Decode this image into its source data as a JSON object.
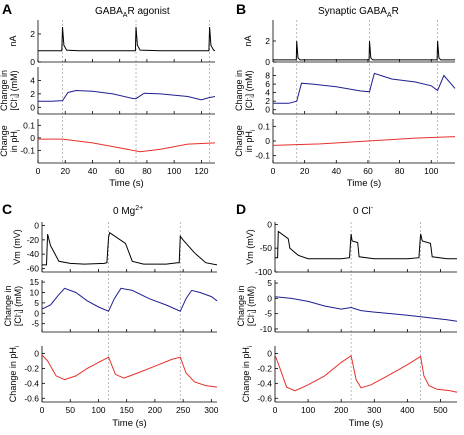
{
  "figure": {
    "panels": [
      {
        "letter": "A",
        "title_main": "GABA",
        "title_sub": "A",
        "title_rest": "R agonist",
        "title_sup": ""
      },
      {
        "letter": "B",
        "title_main": "Synaptic GABA",
        "title_sub": "A",
        "title_rest": "R",
        "title_sup": ""
      },
      {
        "letter": "C",
        "title_main": "0 Mg",
        "title_sub": "",
        "title_rest": "",
        "title_sup": "2+"
      },
      {
        "letter": "D",
        "title_main": "0 Cl",
        "title_sub": "",
        "title_rest": "",
        "title_sup": "-"
      }
    ],
    "axis_labels": {
      "nA": "nA",
      "vm": "Vm (mV)",
      "cl_line1": "Change in",
      "cl_line2_pre": "[Cl",
      "cl_line2_sup": "-",
      "cl_line2_sub": "i",
      "cl_line2_post": "] (mM)",
      "ph_line1": "Change",
      "ph_line2_pre": "in pH",
      "ph_line2_sub": "i",
      "ph_single_pre": "Change in pH",
      "ph_single_sub": "i",
      "time": "Time (s)"
    },
    "colors": {
      "current": "#000000",
      "chloride": "#1f1f8f",
      "ph": "#e8302a",
      "event_lines": "#aaaaaa"
    }
  },
  "chart_data": [
    {
      "panel": "A",
      "trace": "current",
      "type": "line",
      "ylabel": "nA",
      "xlim": [
        0,
        130
      ],
      "ylim": [
        0,
        3
      ],
      "yticks": [
        0,
        2
      ],
      "events": [
        18,
        72,
        126
      ],
      "x": [
        0,
        17.5,
        18,
        19,
        21,
        30,
        71.5,
        72,
        73,
        75,
        90,
        125.5,
        126,
        127,
        129,
        130
      ],
      "y": [
        0.8,
        0.8,
        2.5,
        1.2,
        0.85,
        0.8,
        0.8,
        2.5,
        1.2,
        0.85,
        0.8,
        0.8,
        2.5,
        1.2,
        0.85,
        0.8
      ]
    },
    {
      "panel": "A",
      "trace": "chloride",
      "type": "line",
      "ylabel": "Change in [Cl-]i (mM)",
      "xlim": [
        0,
        130
      ],
      "ylim": [
        -1,
        6
      ],
      "yticks": [
        0,
        2,
        4
      ],
      "x": [
        0,
        10,
        18,
        22,
        28,
        40,
        55,
        70,
        72,
        78,
        90,
        110,
        120,
        125,
        130
      ],
      "y": [
        0.9,
        0.9,
        1.0,
        2.2,
        2.5,
        2.4,
        2.0,
        1.3,
        1.3,
        2.1,
        2.0,
        1.6,
        1.1,
        1.4,
        1.6
      ]
    },
    {
      "panel": "A",
      "trace": "ph",
      "type": "line",
      "ylabel": "Change in pHi",
      "xlim": [
        0,
        130
      ],
      "ylim": [
        -0.2,
        0.15
      ],
      "yticks": [
        -0.1,
        0,
        0.1
      ],
      "x": [
        0,
        18,
        40,
        60,
        75,
        90,
        110,
        130
      ],
      "y": [
        -0.01,
        -0.01,
        -0.04,
        -0.08,
        -0.11,
        -0.09,
        -0.05,
        -0.04
      ]
    },
    {
      "panel": "B",
      "trace": "current",
      "type": "line",
      "ylabel": "nA",
      "xlim": [
        0,
        115
      ],
      "ylim": [
        0,
        4
      ],
      "yticks": [
        0,
        2
      ],
      "events": [
        15,
        61,
        104
      ],
      "x": [
        0,
        14.7,
        15,
        15.8,
        17,
        60.7,
        61,
        61.8,
        63,
        103.7,
        104,
        104.8,
        106,
        115
      ],
      "y": [
        0.2,
        0.2,
        2.0,
        0.4,
        0.2,
        0.2,
        2.0,
        0.4,
        0.2,
        0.2,
        2.0,
        0.4,
        0.2,
        0.2
      ]
    },
    {
      "panel": "B",
      "trace": "chloride",
      "type": "line",
      "ylabel": "Change in [Cl-]i (mM)",
      "xlim": [
        0,
        115
      ],
      "ylim": [
        -1,
        10
      ],
      "yticks": [
        0,
        2,
        4,
        6,
        8
      ],
      "x": [
        0,
        10,
        15,
        18,
        25,
        40,
        55,
        61,
        64,
        75,
        90,
        100,
        104,
        108,
        115
      ],
      "y": [
        1.5,
        1.5,
        2.0,
        6.2,
        6.0,
        5.4,
        4.4,
        4.2,
        8.5,
        7.2,
        6.5,
        5.6,
        4.5,
        8.0,
        5.0
      ]
    },
    {
      "panel": "B",
      "trace": "ph",
      "type": "line",
      "ylabel": "Change in pHi",
      "xlim": [
        0,
        115
      ],
      "ylim": [
        -0.15,
        0.15
      ],
      "yticks": [
        -0.1,
        0,
        0.1
      ],
      "x": [
        0,
        30,
        60,
        90,
        115
      ],
      "y": [
        -0.03,
        -0.02,
        0.0,
        0.02,
        0.03
      ]
    },
    {
      "panel": "C",
      "trace": "vm",
      "type": "line",
      "ylabel": "Vm (mV)",
      "xlim": [
        0,
        310
      ],
      "ylim": [
        -65,
        5
      ],
      "yticks": [
        -60,
        -40,
        -20,
        0
      ],
      "events": [
        118,
        245
      ],
      "x": [
        0,
        8,
        10,
        15,
        30,
        50,
        75,
        110,
        115,
        118,
        120,
        148,
        160,
        180,
        200,
        220,
        240,
        243,
        245,
        250,
        270,
        290,
        310
      ],
      "y": [
        -55,
        -55,
        -12,
        -28,
        -50,
        -53,
        -54,
        -53,
        -52,
        -16,
        -10,
        -25,
        -50,
        -54,
        -54,
        -54,
        -52,
        -52,
        -15,
        -20,
        -38,
        -52,
        -55
      ]
    },
    {
      "panel": "C",
      "trace": "chloride",
      "type": "line",
      "ylabel": "Change in [Cl-]i (mM)",
      "xlim": [
        0,
        310
      ],
      "ylim": [
        -9,
        16
      ],
      "yticks": [
        -5,
        0,
        5,
        10,
        15
      ],
      "x": [
        0,
        15,
        30,
        40,
        60,
        80,
        100,
        118,
        128,
        140,
        160,
        190,
        220,
        245,
        255,
        265,
        280,
        300,
        310
      ],
      "y": [
        2,
        4,
        9,
        12,
        10,
        6,
        3,
        1,
        7,
        12,
        11,
        7,
        4,
        1,
        7,
        11,
        10,
        8,
        6
      ]
    },
    {
      "panel": "C",
      "trace": "ph",
      "type": "line",
      "ylabel": "Change in pHi",
      "xlim": [
        0,
        310
      ],
      "ylim": [
        -0.65,
        0.1
      ],
      "yticks": [
        -0.6,
        -0.4,
        -0.2,
        0
      ],
      "x": [
        0,
        10,
        25,
        40,
        60,
        80,
        100,
        118,
        130,
        145,
        170,
        200,
        230,
        245,
        255,
        270,
        290,
        310
      ],
      "y": [
        -0.02,
        -0.1,
        -0.3,
        -0.35,
        -0.3,
        -0.2,
        -0.12,
        -0.05,
        -0.28,
        -0.33,
        -0.26,
        -0.17,
        -0.08,
        -0.05,
        -0.26,
        -0.38,
        -0.43,
        -0.45
      ]
    },
    {
      "panel": "D",
      "trace": "vm",
      "type": "line",
      "ylabel": "Vm (mV)",
      "xlim": [
        0,
        550
      ],
      "ylim": [
        -100,
        5
      ],
      "yticks": [
        -100,
        -50,
        0
      ],
      "events": [
        230,
        440
      ],
      "x": [
        0,
        8,
        10,
        40,
        45,
        70,
        100,
        150,
        200,
        225,
        230,
        233,
        250,
        254,
        300,
        350,
        400,
        435,
        440,
        445,
        470,
        475,
        520,
        550
      ],
      "y": [
        -70,
        -70,
        -15,
        -30,
        -50,
        -65,
        -72,
        -72,
        -72,
        -70,
        -20,
        -35,
        -38,
        -68,
        -72,
        -72,
        -72,
        -70,
        -20,
        -35,
        -40,
        -68,
        -72,
        -72
      ]
    },
    {
      "panel": "D",
      "trace": "chloride",
      "type": "line",
      "ylabel": "Change in [Cl-]i (mM)",
      "xlim": [
        0,
        550
      ],
      "ylim": [
        -11,
        6
      ],
      "yticks": [
        -10,
        -5,
        0,
        5
      ],
      "x": [
        0,
        50,
        100,
        150,
        200,
        230,
        260,
        300,
        350,
        400,
        440,
        480,
        520,
        550
      ],
      "y": [
        0.5,
        0.0,
        -1.0,
        -2.5,
        -3.5,
        -3.0,
        -4.0,
        -4.5,
        -5.0,
        -5.5,
        -6.0,
        -6.5,
        -7.0,
        -7.5
      ]
    },
    {
      "panel": "D",
      "trace": "ph",
      "type": "line",
      "ylabel": "Change in pHi",
      "xlim": [
        0,
        550
      ],
      "ylim": [
        -0.65,
        0.1
      ],
      "yticks": [
        -0.6,
        -0.4,
        -0.2,
        0
      ],
      "x": [
        0,
        15,
        35,
        60,
        100,
        150,
        200,
        230,
        245,
        260,
        290,
        340,
        400,
        440,
        450,
        465,
        490,
        530,
        550
      ],
      "y": [
        -0.02,
        -0.2,
        -0.45,
        -0.5,
        -0.42,
        -0.3,
        -0.12,
        -0.03,
        -0.35,
        -0.46,
        -0.42,
        -0.3,
        -0.15,
        -0.04,
        -0.3,
        -0.43,
        -0.48,
        -0.5,
        -0.52
      ]
    },
    {
      "panel": "A",
      "trace": "time_axis",
      "type": "axis",
      "xlabel": "Time (s)",
      "xticks": [
        0,
        20,
        40,
        60,
        80,
        100,
        120
      ]
    },
    {
      "panel": "B",
      "trace": "time_axis",
      "type": "axis",
      "xlabel": "Time (s)",
      "xticks": [
        0,
        20,
        40,
        60,
        80,
        100
      ]
    },
    {
      "panel": "C",
      "trace": "time_axis",
      "type": "axis",
      "xlabel": "Time (s)",
      "xticks": [
        0,
        50,
        100,
        150,
        200,
        250,
        300
      ]
    },
    {
      "panel": "D",
      "trace": "time_axis",
      "type": "axis",
      "xlabel": "Time (s)",
      "xticks": [
        0,
        100,
        200,
        300,
        400,
        500
      ]
    }
  ]
}
